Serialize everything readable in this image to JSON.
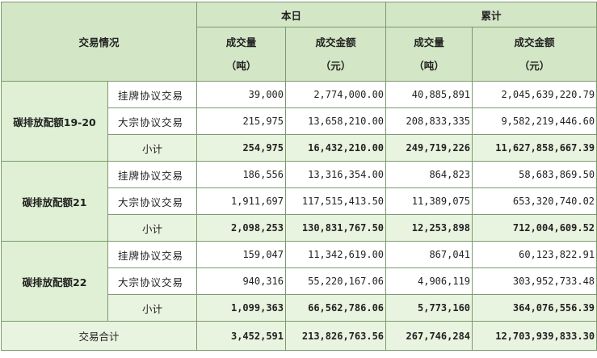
{
  "header": {
    "trade_situation": "交易情况",
    "today": "本日",
    "cumulative": "累计",
    "volume": "成交量",
    "volume_unit": "（吨）",
    "amount": "成交金额",
    "amount_unit": "（元）"
  },
  "groups": [
    {
      "name": "碳排放配额19-20",
      "rows": [
        {
          "type": "挂牌协议交易",
          "today_volume": "39,000",
          "today_amount": "2,774,000.00",
          "cum_volume": "40,885,891",
          "cum_amount": "2,045,639,220.79"
        },
        {
          "type": "大宗协议交易",
          "today_volume": "215,975",
          "today_amount": "13,658,210.00",
          "cum_volume": "208,833,335",
          "cum_amount": "9,582,219,446.60"
        },
        {
          "type": "小计",
          "today_volume": "254,975",
          "today_amount": "16,432,210.00",
          "cum_volume": "249,719,226",
          "cum_amount": "11,627,858,667.39"
        }
      ]
    },
    {
      "name": "碳排放配额21",
      "rows": [
        {
          "type": "挂牌协议交易",
          "today_volume": "186,556",
          "today_amount": "13,316,354.00",
          "cum_volume": "864,823",
          "cum_amount": "58,683,869.50"
        },
        {
          "type": "大宗协议交易",
          "today_volume": "1,911,697",
          "today_amount": "117,515,413.50",
          "cum_volume": "11,389,075",
          "cum_amount": "653,320,740.02"
        },
        {
          "type": "小计",
          "today_volume": "2,098,253",
          "today_amount": "130,831,767.50",
          "cum_volume": "12,253,898",
          "cum_amount": "712,004,609.52"
        }
      ]
    },
    {
      "name": "碳排放配额22",
      "rows": [
        {
          "type": "挂牌协议交易",
          "today_volume": "159,047",
          "today_amount": "11,342,619.00",
          "cum_volume": "867,041",
          "cum_amount": "60,123,822.91"
        },
        {
          "type": "大宗协议交易",
          "today_volume": "940,316",
          "today_amount": "55,220,167.06",
          "cum_volume": "4,906,119",
          "cum_amount": "303,952,733.48"
        },
        {
          "type": "小计",
          "today_volume": "1,099,363",
          "today_amount": "66,562,786.06",
          "cum_volume": "5,773,160",
          "cum_amount": "364,076,556.39"
        }
      ]
    }
  ],
  "total": {
    "label": "交易合计",
    "today_volume": "3,452,591",
    "today_amount": "213,826,763.56",
    "cum_volume": "267,746,284",
    "cum_amount": "12,703,939,833.30"
  }
}
